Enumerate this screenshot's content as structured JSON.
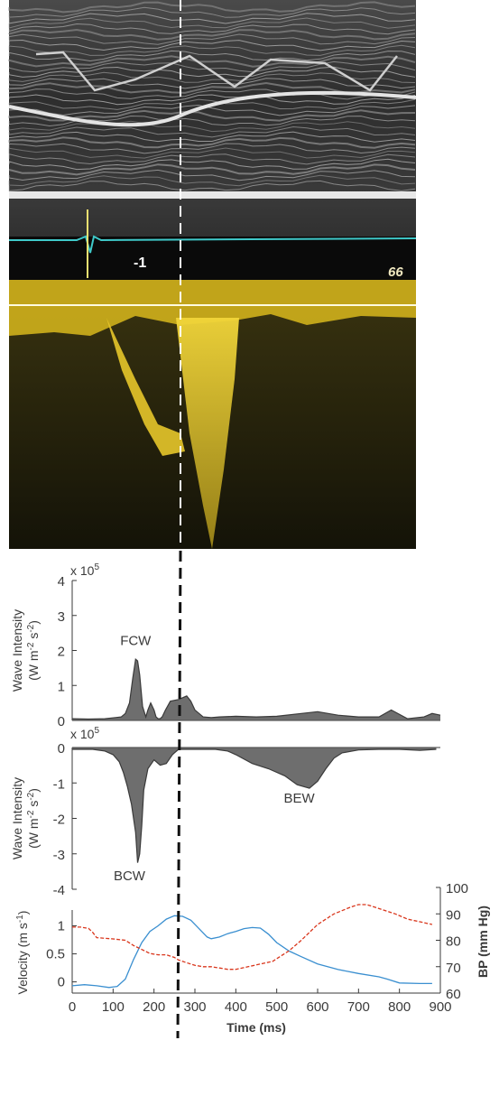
{
  "ultrasound": {
    "mmode_marker": "-1",
    "mmode_number": "66"
  },
  "colors": {
    "ink": "#3a3a3a",
    "fill": "#555555",
    "velocity": "#3a8fd0",
    "bp": "#d9361c",
    "doppler": "#e0c21a",
    "ecg": "#3fc9c9"
  },
  "chart_data": [
    {
      "type": "area",
      "id": "forward",
      "scale_label": "x 10",
      "scale_exp": "5",
      "ylabel_line1": "Wave Intensity",
      "ylabel_line2": "(W m",
      "ylabel_sup1": "-2",
      "ylabel_mid": " s",
      "ylabel_sup2": "-2",
      "ylabel_end": ")",
      "yticks": [
        "0",
        "1",
        "2",
        "3",
        "4"
      ],
      "ylim": [
        0,
        4
      ],
      "xlim": [
        0,
        900
      ],
      "annotations": [
        {
          "text": "FCW",
          "x": 155,
          "y": 2.15
        }
      ],
      "x": [
        0,
        40,
        80,
        120,
        130,
        140,
        148,
        155,
        160,
        165,
        172,
        180,
        185,
        192,
        200,
        205,
        210,
        215,
        220,
        228,
        240,
        260,
        280,
        290,
        300,
        320,
        340,
        360,
        400,
        450,
        500,
        560,
        600,
        650,
        700,
        750,
        780,
        820,
        860,
        880,
        900
      ],
      "values": [
        0.05,
        0.04,
        0.05,
        0.1,
        0.2,
        0.5,
        1.2,
        1.75,
        1.7,
        1.3,
        0.4,
        0.1,
        0.3,
        0.5,
        0.3,
        0.1,
        0.05,
        0.05,
        0.1,
        0.3,
        0.55,
        0.6,
        0.7,
        0.55,
        0.3,
        0.1,
        0.08,
        0.1,
        0.12,
        0.1,
        0.12,
        0.2,
        0.25,
        0.15,
        0.1,
        0.1,
        0.3,
        0.05,
        0.1,
        0.2,
        0.15
      ]
    },
    {
      "type": "area",
      "id": "backward",
      "scale_label": "x 10",
      "scale_exp": "5",
      "ylabel_line1": "Wave Intensity",
      "ylabel_line2": "(W m",
      "ylabel_sup1": "-2",
      "ylabel_mid": " s",
      "ylabel_sup2": "-2",
      "ylabel_end": ")",
      "yticks": [
        "0",
        "-1",
        "-2",
        "-3",
        "-4"
      ],
      "ylim": [
        -4,
        0
      ],
      "xlim": [
        0,
        900
      ],
      "annotations": [
        {
          "text": "BCW",
          "x": 140,
          "y": -3.75
        },
        {
          "text": "BEW",
          "x": 555,
          "y": -1.55
        }
      ],
      "x": [
        0,
        50,
        80,
        100,
        115,
        125,
        135,
        145,
        155,
        160,
        165,
        170,
        175,
        185,
        200,
        215,
        230,
        245,
        250,
        260,
        300,
        350,
        380,
        400,
        440,
        480,
        520,
        550,
        580,
        600,
        620,
        640,
        660,
        700,
        750,
        800,
        850,
        890
      ],
      "values": [
        -0.05,
        -0.05,
        -0.1,
        -0.2,
        -0.4,
        -0.7,
        -1.1,
        -1.6,
        -2.4,
        -3.25,
        -3.0,
        -2.2,
        -1.2,
        -0.6,
        -0.35,
        -0.5,
        -0.45,
        -0.2,
        -0.15,
        -0.05,
        -0.05,
        -0.05,
        -0.1,
        -0.2,
        -0.45,
        -0.6,
        -0.8,
        -1.05,
        -1.15,
        -0.95,
        -0.6,
        -0.3,
        -0.15,
        -0.07,
        -0.05,
        -0.05,
        -0.08,
        -0.05
      ]
    },
    {
      "type": "line",
      "id": "velocity_bp",
      "xlabel": "Time (ms)",
      "ylabel_left": "Velocity (m s",
      "ylabel_left_sup": "-1",
      "ylabel_left_end": ")",
      "ylabel_right": "BP (mm Hg)",
      "xticks": [
        "0",
        "100",
        "200",
        "300",
        "400",
        "500",
        "600",
        "700",
        "800",
        "900"
      ],
      "yticks_left": [
        "0",
        "0.5",
        "1"
      ],
      "yticks_right": [
        "60",
        "70",
        "80",
        "90",
        "100"
      ],
      "xlim": [
        0,
        900
      ],
      "ylim_left": [
        -0.2,
        1.25
      ],
      "ylim_right": [
        60,
        100
      ],
      "series": [
        {
          "id": "velocity",
          "axis": "left",
          "x": [
            0,
            30,
            60,
            90,
            110,
            130,
            150,
            170,
            190,
            210,
            230,
            250,
            270,
            290,
            310,
            330,
            340,
            360,
            380,
            400,
            420,
            440,
            460,
            480,
            500,
            530,
            560,
            600,
            650,
            700,
            750,
            770,
            800,
            850,
            880
          ],
          "values": [
            -0.07,
            -0.05,
            -0.07,
            -0.1,
            -0.08,
            0.05,
            0.4,
            0.7,
            0.9,
            1.0,
            1.12,
            1.18,
            1.17,
            1.1,
            0.95,
            0.8,
            0.77,
            0.8,
            0.86,
            0.9,
            0.95,
            0.97,
            0.96,
            0.85,
            0.7,
            0.55,
            0.45,
            0.32,
            0.22,
            0.15,
            0.09,
            0.05,
            -0.02,
            -0.03,
            -0.03
          ]
        },
        {
          "id": "bp",
          "axis": "right",
          "style": "dashed",
          "x": [
            0,
            20,
            40,
            50,
            60,
            100,
            130,
            150,
            170,
            190,
            210,
            230,
            250,
            260,
            280,
            300,
            320,
            340,
            360,
            380,
            400,
            430,
            460,
            490,
            510,
            530,
            560,
            600,
            640,
            680,
            700,
            720,
            740,
            760,
            790,
            820,
            850,
            880
          ],
          "values": [
            85,
            85,
            84.5,
            83,
            81,
            80.5,
            80,
            78,
            76.5,
            75,
            74.5,
            74.5,
            73.5,
            72.5,
            71.5,
            70.5,
            70,
            70,
            69.5,
            69,
            69,
            70,
            71,
            72,
            74,
            76,
            80,
            86,
            90,
            92.5,
            93.5,
            93.5,
            92.5,
            91.5,
            90,
            88,
            87,
            86
          ]
        }
      ]
    }
  ]
}
